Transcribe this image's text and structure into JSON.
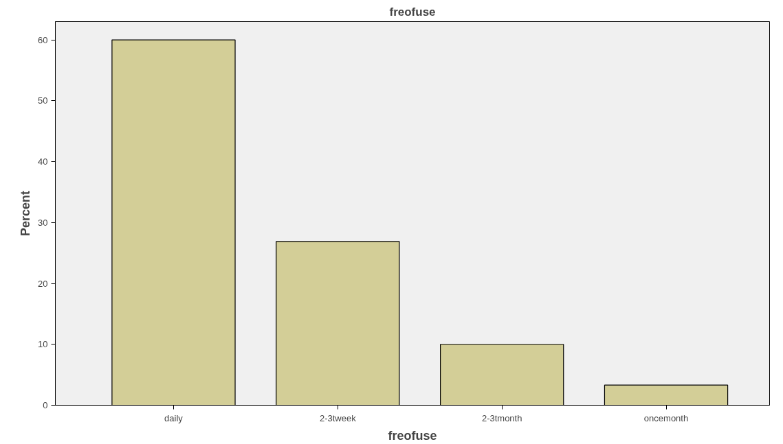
{
  "chart_data": {
    "type": "bar",
    "title": "freofuse",
    "xlabel": "freofuse",
    "ylabel": "Percent",
    "categories": [
      "daily",
      "2-3tweek",
      "2-3tmonth",
      "oncemonth"
    ],
    "values": [
      60,
      26.9,
      10,
      3.3
    ],
    "color": "#d3ce97",
    "ylim": [
      0,
      63
    ],
    "yticks": [
      0,
      10,
      20,
      30,
      40,
      50,
      60
    ],
    "grid": false
  }
}
